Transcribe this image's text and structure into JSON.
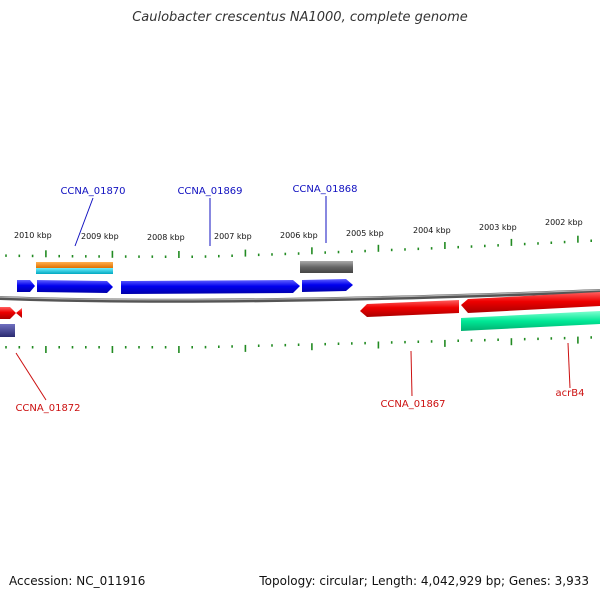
{
  "title": "Caulobacter crescentus NA1000, complete genome",
  "accession_text": "Accession: NC_011916",
  "summary_text": "Topology: circular; Length: 4,042,929 bp; Genes: 3,933",
  "colors": {
    "forward_gene": "#0000ee",
    "reverse_gene": "#ee0000",
    "backbone": "#7f7f7f",
    "tick": "#228b22",
    "forward_label": "#1010c0",
    "reverse_label": "#cc1010",
    "orange_feature": "#ff8c00",
    "cyan_feature": "#00c8d8",
    "gray_feature": "#666666",
    "green_feature": "#00e896",
    "navy_feature": "#3a3a8a"
  },
  "scale_labels": [
    "2010 kbp",
    "2009 kbp",
    "2008 kbp",
    "2007 kbp",
    "2006 kbp",
    "2005 kbp",
    "2004 kbp",
    "2003 kbp",
    "2002 kbp"
  ],
  "gene_labels": {
    "forward": [
      "CCNA_01870",
      "CCNA_01869",
      "CCNA_01868"
    ],
    "reverse": [
      "CCNA_01872",
      "CCNA_01867",
      "acrB4"
    ]
  }
}
